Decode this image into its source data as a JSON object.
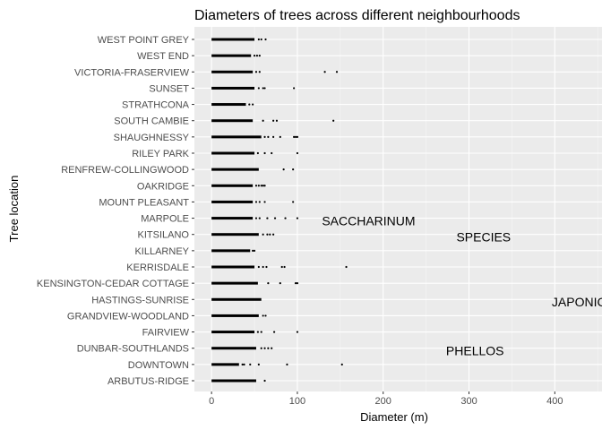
{
  "chart_data": {
    "type": "boxplot",
    "title": "Diameters of trees across different neighbourhoods",
    "xlabel": "Diameter (m)",
    "ylabel": "Tree location",
    "xlim": [
      -20,
      455
    ],
    "x_ticks": [
      0,
      100,
      200,
      300,
      400
    ],
    "grid": true,
    "categories": [
      "ARBUTUS-RIDGE",
      "DOWNTOWN",
      "DUNBAR-SOUTHLANDS",
      "FAIRVIEW",
      "GRANDVIEW-WOODLAND",
      "HASTINGS-SUNRISE",
      "KENSINGTON-CEDAR COTTAGE",
      "KERRISDALE",
      "KILLARNEY",
      "KITSILANO",
      "MARPOLE",
      "MOUNT PLEASANT",
      "OAKRIDGE",
      "RENFREW-COLLINGWOOD",
      "RILEY PARK",
      "SHAUGHNESSY",
      "SOUTH CAMBIE",
      "STRATHCONA",
      "SUNSET",
      "VICTORIA-FRASERVIEW",
      "WEST END",
      "WEST POINT GREY"
    ],
    "series": [
      {
        "whisker_end": 52,
        "outliers": [
          62
        ]
      },
      {
        "whisker_end": 32,
        "outliers": [
          36,
          38,
          45,
          55,
          88,
          152
        ]
      },
      {
        "whisker_end": 52,
        "outliers": [
          58,
          62,
          66,
          70
        ]
      },
      {
        "whisker_end": 50,
        "outliers": [
          54,
          58,
          73,
          100
        ]
      },
      {
        "whisker_end": 55,
        "outliers": [
          60,
          63
        ]
      },
      {
        "whisker_end": 58,
        "outliers": []
      },
      {
        "whisker_end": 54,
        "outliers": [
          66,
          80,
          98,
          100
        ]
      },
      {
        "whisker_end": 50,
        "outliers": [
          55,
          60,
          64,
          82,
          85,
          157
        ]
      },
      {
        "whisker_end": 45,
        "outliers": [
          48,
          50
        ]
      },
      {
        "whisker_end": 55,
        "outliers": [
          60,
          65,
          68,
          72
        ]
      },
      {
        "whisker_end": 48,
        "outliers": [
          52,
          56,
          65,
          74,
          86,
          100
        ]
      },
      {
        "whisker_end": 48,
        "outliers": [
          52,
          56,
          62,
          95
        ]
      },
      {
        "whisker_end": 48,
        "outliers": [
          52,
          55,
          58,
          60,
          62
        ]
      },
      {
        "whisker_end": 55,
        "outliers": [
          84,
          95
        ]
      },
      {
        "whisker_end": 50,
        "outliers": [
          54,
          62,
          70,
          100
        ]
      },
      {
        "whisker_end": 58,
        "outliers": [
          62,
          66,
          72,
          80,
          96,
          98,
          100
        ]
      },
      {
        "whisker_end": 48,
        "outliers": [
          60,
          72,
          76,
          142
        ]
      },
      {
        "whisker_end": 40,
        "outliers": [
          44,
          48
        ]
      },
      {
        "whisker_end": 50,
        "outliers": [
          55,
          60,
          62,
          96
        ]
      },
      {
        "whisker_end": 48,
        "outliers": [
          52,
          56,
          132,
          146
        ]
      },
      {
        "whisker_end": 46,
        "outliers": [
          50,
          53,
          56
        ]
      },
      {
        "whisker_end": 50,
        "outliers": [
          55,
          58,
          63
        ]
      }
    ],
    "annotations": [
      {
        "text": "SACCHARINUM",
        "x": 183,
        "category": "MARPOLE",
        "offset": -0.15
      },
      {
        "text": "SPECIES",
        "x": 317,
        "category": "KITSILANO",
        "offset": -0.15
      },
      {
        "text": "JAPONICA",
        "x": 433,
        "category": "HASTINGS-SUNRISE",
        "offset": -0.15
      },
      {
        "text": "PHELLOS",
        "x": 307,
        "category": "DUNBAR-SOUTHLANDS",
        "offset": -0.15
      }
    ]
  }
}
